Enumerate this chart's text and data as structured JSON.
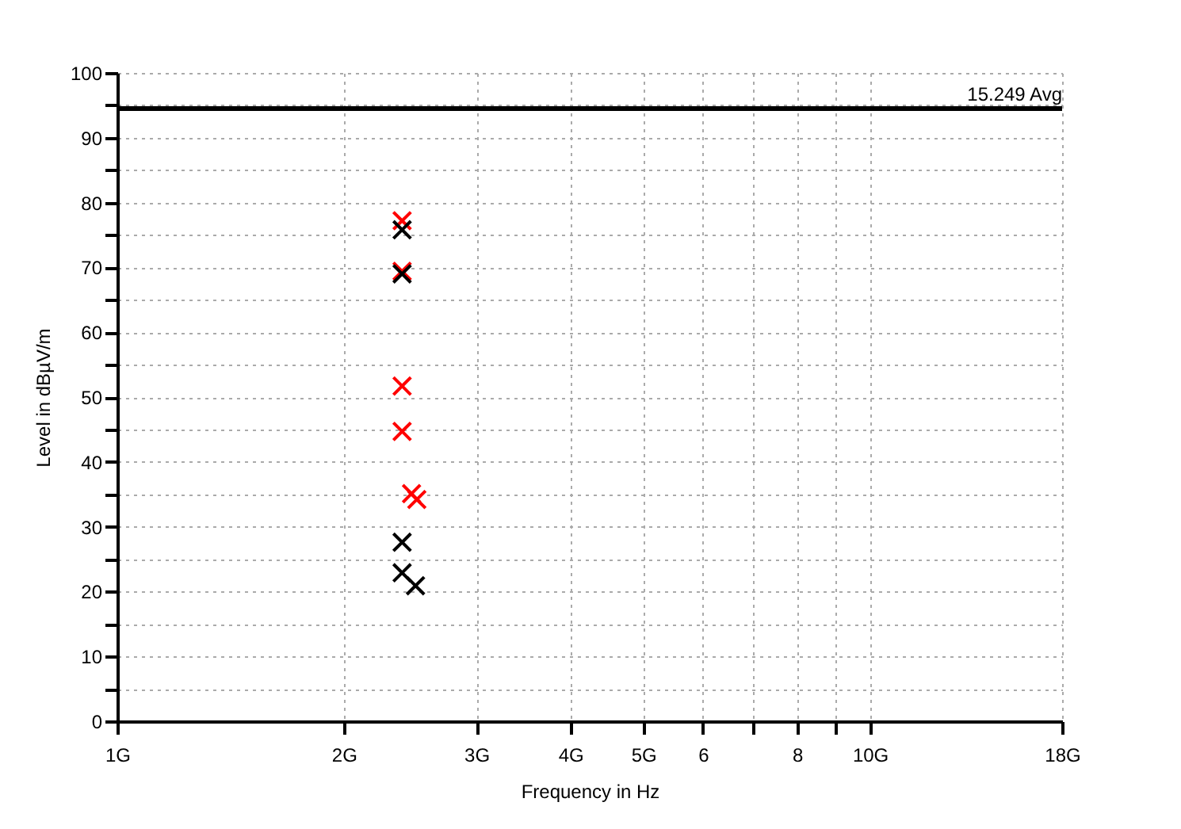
{
  "chart_data": {
    "type": "scatter",
    "xlabel": "Frequency in Hz",
    "ylabel": "Level in dBµV/m",
    "log": "x",
    "grid": true,
    "marker": "cross",
    "legend": false,
    "xlim": [
      1,
      18
    ],
    "xticks": [
      {
        "value": 1,
        "label": "1G"
      },
      {
        "value": 2,
        "label": "2G"
      },
      {
        "value": 3,
        "label": "3G"
      },
      {
        "value": 4,
        "label": "4G"
      },
      {
        "value": 5,
        "label": "5G"
      },
      6,
      {
        "value": 7,
        "label": null
      },
      8,
      {
        "value": 9,
        "label": null
      },
      {
        "value": 10,
        "label": "10G"
      },
      {
        "value": 18,
        "label": "18G"
      }
    ],
    "ylim": [
      0,
      100
    ],
    "yticks": [
      0,
      {
        "value": 5,
        "label": null
      },
      10,
      {
        "value": 15,
        "label": null
      },
      20,
      {
        "value": 25,
        "label": null
      },
      30,
      {
        "value": 35,
        "label": null
      },
      40,
      {
        "value": 45,
        "label": null
      },
      50,
      {
        "value": 55,
        "label": null
      },
      60,
      {
        "value": 65,
        "label": null
      },
      70,
      {
        "value": 75,
        "label": null
      },
      80,
      {
        "value": 85,
        "label": null
      },
      90,
      {
        "value": 95,
        "label": null
      },
      100
    ],
    "series": [
      {
        "color": "#ff0000",
        "x": [
          2.39,
          2.39,
          2.39,
          2.39,
          2.46,
          2.5
        ],
        "values": [
          77.2,
          69.4,
          51.7,
          44.7,
          35.1,
          34.2
        ]
      },
      {
        "color": "#000000",
        "x": [
          2.39,
          2.39,
          2.39,
          2.39,
          2.49
        ],
        "values": [
          75.8,
          69.0,
          27.6,
          22.9,
          20.9
        ]
      }
    ],
    "ref_lines": [
      {
        "axis": "y",
        "value": 94.5,
        "label": "15.249 Avg",
        "color": "#000000"
      }
    ]
  }
}
